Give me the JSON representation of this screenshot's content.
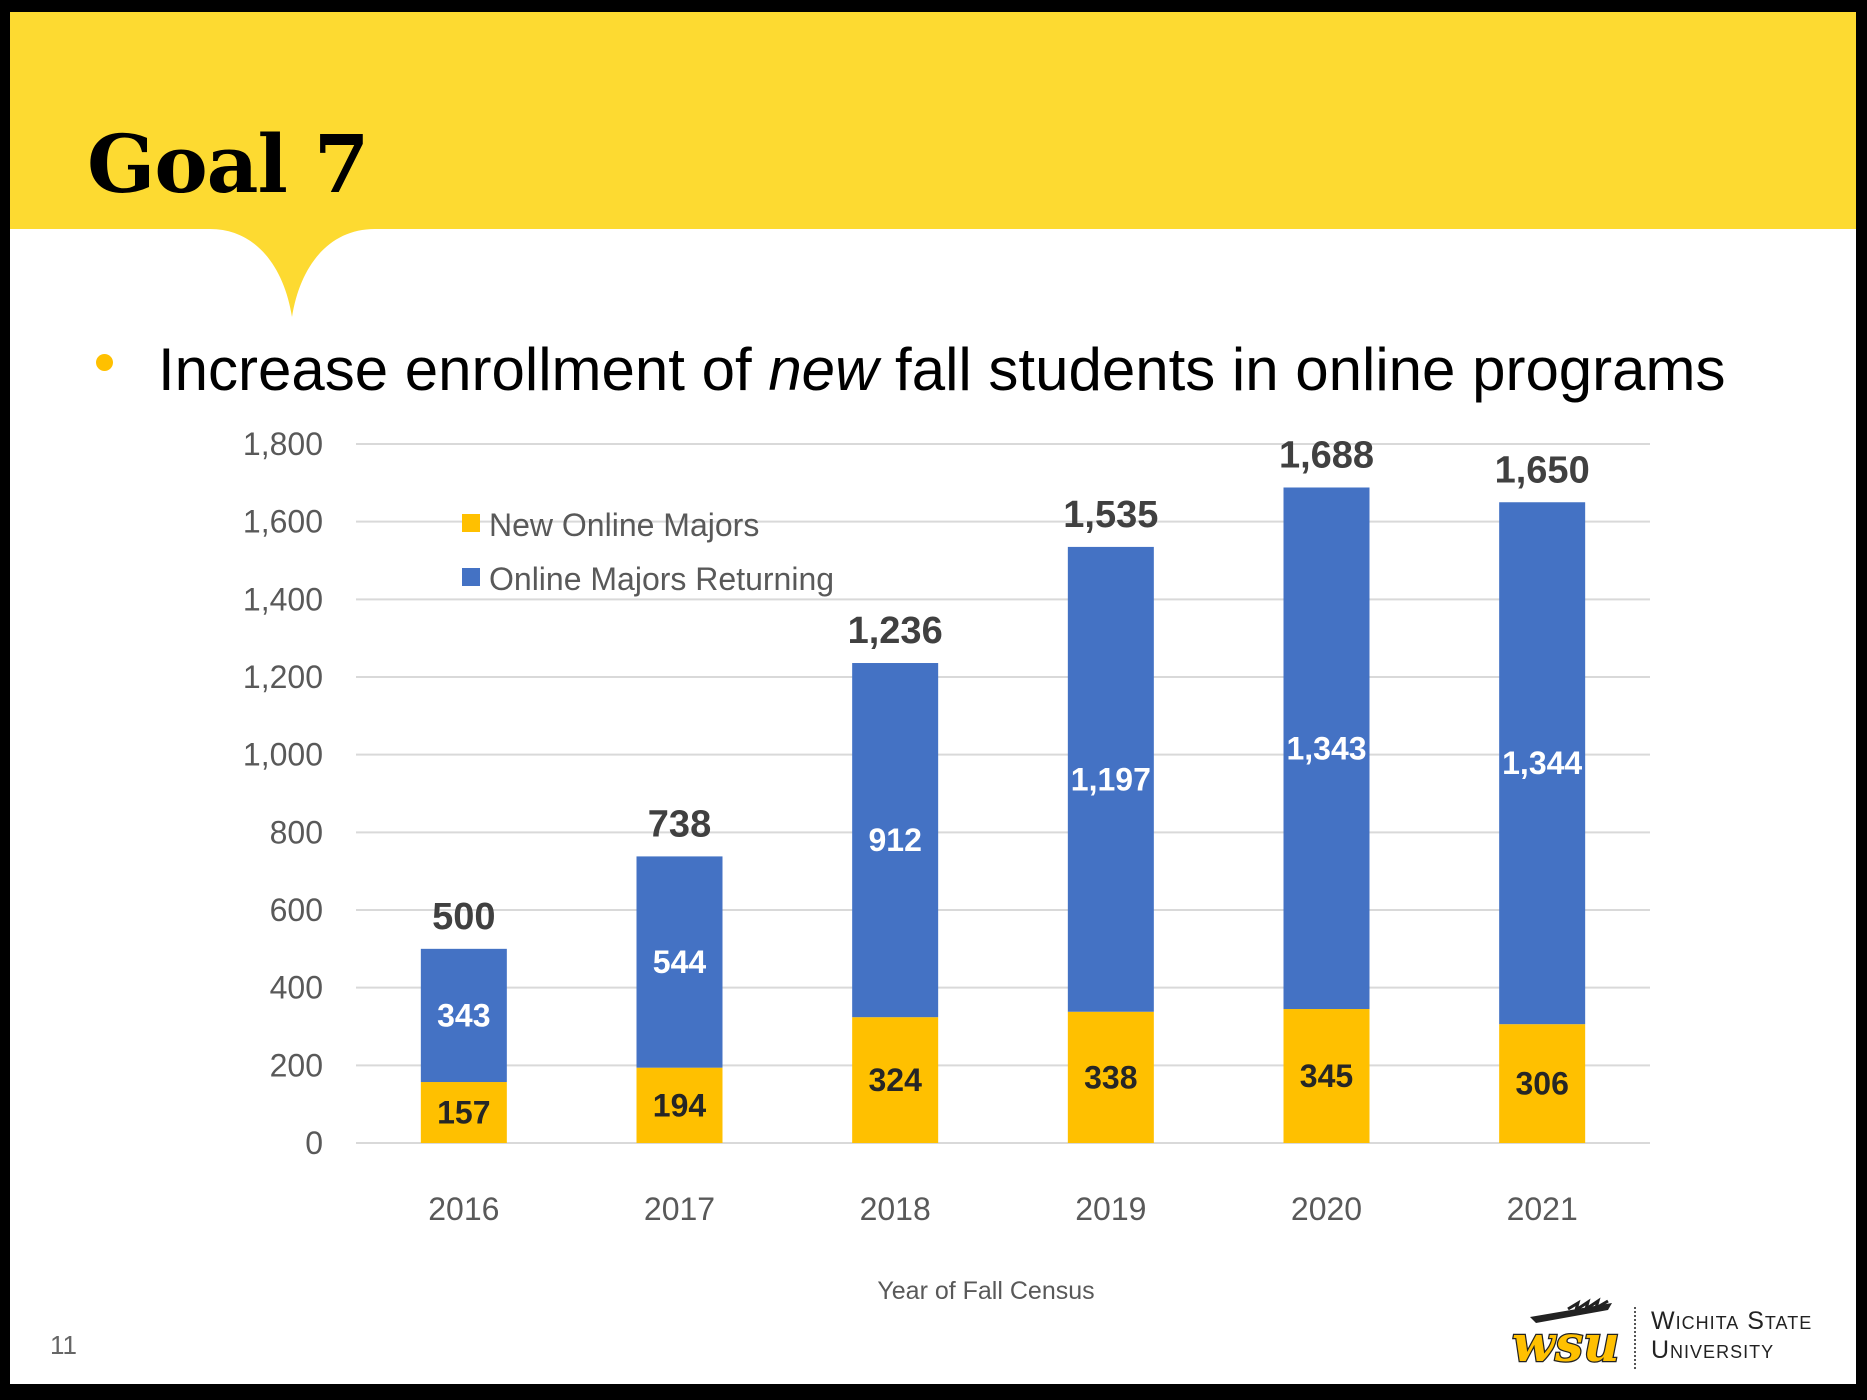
{
  "slide": {
    "title": "Goal 7",
    "bullet": {
      "before": "Increase enrollment of ",
      "emphasis": "new",
      "after": " fall students in online programs"
    },
    "page_number": "11",
    "logo": {
      "mark_text": "wsu",
      "line1": "Wichita State",
      "line2": "University"
    }
  },
  "colors": {
    "header_band": "#FDDA31",
    "bullet": "#FFC000",
    "new_series": "#FFC000",
    "returning_series": "#4472C4",
    "axis_text": "#595959",
    "total_label": "#404040",
    "gridline": "#D9D9D9"
  },
  "chart_data": {
    "type": "bar",
    "stacked": true,
    "categories": [
      "2016",
      "2017",
      "2018",
      "2019",
      "2020",
      "2021"
    ],
    "series": [
      {
        "name": "New Online Majors",
        "values": [
          157,
          194,
          324,
          338,
          345,
          306
        ]
      },
      {
        "name": "Online Majors Returning",
        "values": [
          343,
          544,
          912,
          1197,
          1343,
          1344
        ]
      }
    ],
    "totals": [
      500,
      738,
      1236,
      1535,
      1688,
      1650
    ],
    "value_labels": {
      "new": [
        "157",
        "194",
        "324",
        "338",
        "345",
        "306"
      ],
      "returning": [
        "343",
        "544",
        "912",
        "1,197",
        "1,343",
        "1,344"
      ],
      "totals": [
        "500",
        "738",
        "1,236",
        "1,535",
        "1,688",
        "1,650"
      ]
    },
    "y_ticks": [
      0,
      200,
      400,
      600,
      800,
      1000,
      1200,
      1400,
      1600,
      1800
    ],
    "y_tick_labels": [
      "0",
      "200",
      "400",
      "600",
      "800",
      "1,000",
      "1,200",
      "1,400",
      "1,600",
      "1,800"
    ],
    "ylim": [
      0,
      1800
    ],
    "xlabel": "Year of Fall Census",
    "ylabel": "",
    "grid": true,
    "legend_position": "top-left"
  }
}
